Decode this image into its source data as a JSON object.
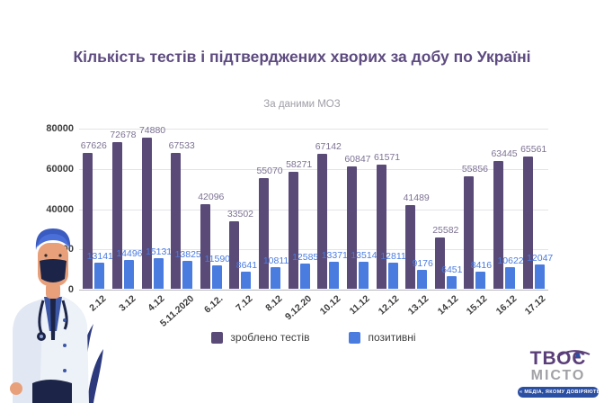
{
  "header": {
    "title": "Кількість тестів і підтверджених хворих за добу по Україні",
    "subtitle": "За даними МОЗ"
  },
  "chart_data": {
    "type": "bar",
    "title": "Кількість тестів і підтверджених хворих за добу по Україні",
    "subtitle": "За даними МОЗ",
    "categories": [
      "2.12",
      "3.12",
      "4.12",
      "5.11.2020",
      "6.12.",
      "7.12",
      "8.12",
      "9.12.20",
      "10.12",
      "11.12",
      "12.12",
      "13.12",
      "14.12",
      "15.12",
      "16.12",
      "17.12"
    ],
    "series": [
      {
        "name": "зроблено тестів",
        "color": "#5a4a78",
        "values": [
          67626,
          72678,
          74880,
          67533,
          42096,
          33502,
          55070,
          58271,
          67142,
          60847,
          61571,
          41489,
          25582,
          55856,
          63445,
          65561
        ]
      },
      {
        "name": "позитивні",
        "color": "#4a7ce0",
        "values": [
          13141,
          14496,
          15131,
          13825,
          11590,
          8641,
          10811,
          12585,
          13371,
          13514,
          12811,
          9176,
          6451,
          8416,
          10622,
          12047
        ]
      }
    ],
    "ylim": [
      0,
      80000
    ],
    "yticks": [
      0,
      20000,
      40000,
      60000,
      80000
    ],
    "grid": true,
    "legend_position": "bottom",
    "value_labels": true
  },
  "colors": {
    "title": "#5d4b80",
    "tests_bar": "#5a4a78",
    "positive_bar": "#4a7ce0",
    "tests_label": "#7d7293",
    "positive_label": "#4a7ce0"
  },
  "logo": {
    "line1": "ТВОЄ",
    "line2": "МІСТО",
    "tagline": "« МЕДІА, ЯКОМУ ДОВІРЯЮТЬ »"
  },
  "illustration": {
    "name": "doctor-with-mask-and-plant"
  }
}
